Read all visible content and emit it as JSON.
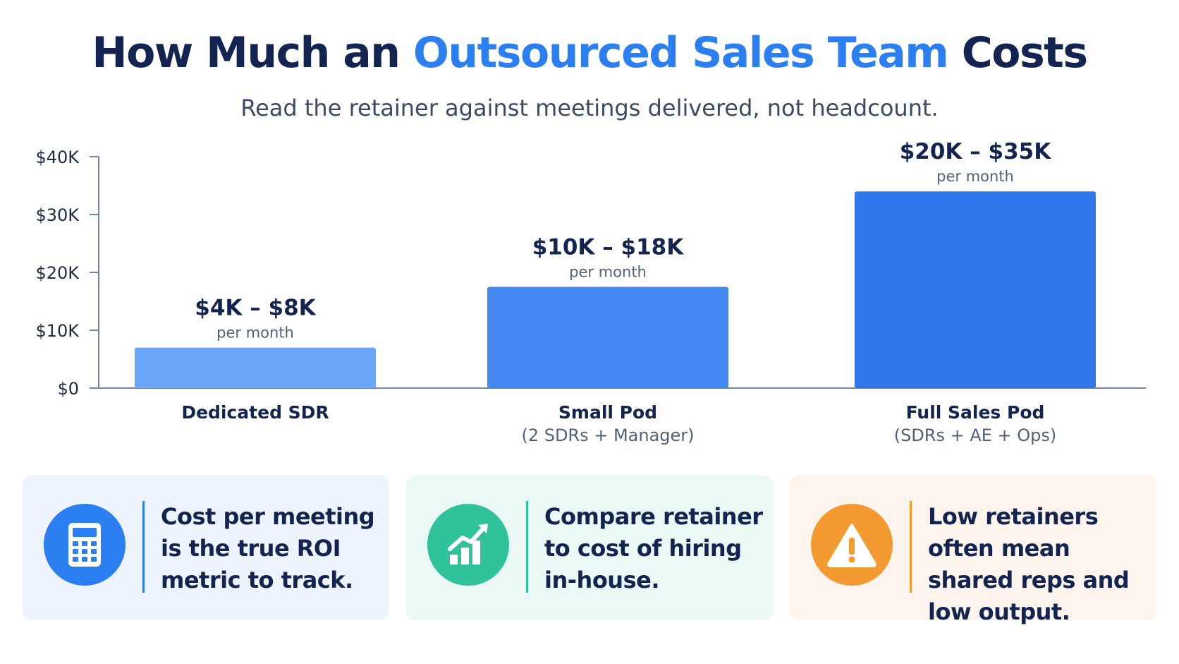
{
  "header": {
    "title_before": "How Much an",
    "title_accent": "Outsourced Sales Team",
    "title_after": "Costs",
    "subtitle": "Read the retainer against meetings delivered, not headcount."
  },
  "colors": {
    "navy": "#12244f",
    "accent_blue": "#2b7ff0",
    "bar_light": "#6aa6f8",
    "bar_mid": "#4488f2",
    "bar_dark": "#2e78ec",
    "axis": "#7384a5",
    "teal": "#2fc29b",
    "orange": "#f39a31"
  },
  "chart_data": {
    "type": "bar",
    "categories": [
      "Dedicated SDR",
      "Small Pod",
      "Full Sales Pod"
    ],
    "category_sublabels": [
      "",
      "(2 SDRs + Manager)",
      "(SDRs + AE + Ops)"
    ],
    "values": [
      7000,
      17500,
      34000
    ],
    "value_labels": [
      "$4K – $8K",
      "$10K – $18K",
      "$20K – $35K"
    ],
    "value_sublabel": "per month",
    "ylim": [
      0,
      40000
    ],
    "yticks": [
      0,
      10000,
      20000,
      30000,
      40000
    ],
    "ytick_labels": [
      "$0",
      "$10K",
      "$20K",
      "$30K",
      "$40K"
    ],
    "title": "",
    "xlabel": "",
    "ylabel": "",
    "grid": false,
    "legend": "none"
  },
  "cards": [
    {
      "icon": "calculator-icon",
      "text": "Cost per meeting is the true ROI metric to track."
    },
    {
      "icon": "growth-chart-icon",
      "text": "Compare retainer to cost of hiring in-house."
    },
    {
      "icon": "warning-icon",
      "text": "Low retainers often mean shared reps and low output."
    }
  ]
}
